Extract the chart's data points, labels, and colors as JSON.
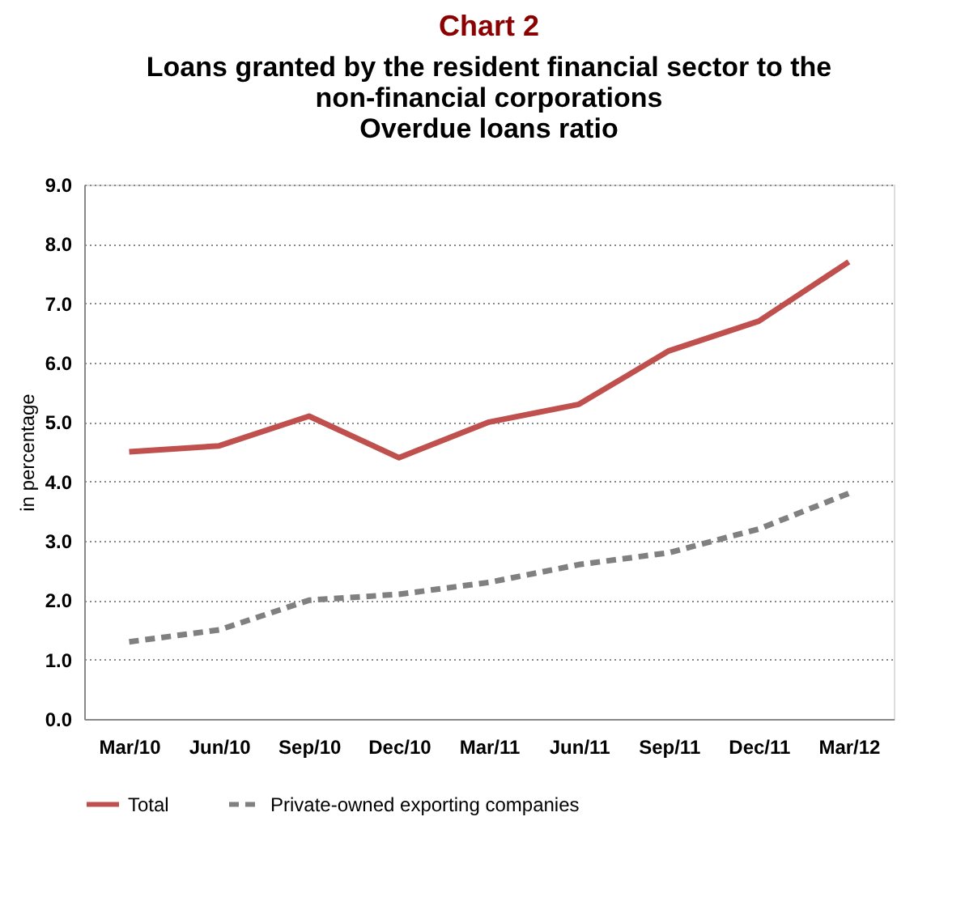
{
  "chart_data": {
    "type": "line",
    "title": "Chart 2",
    "subtitle": "Loans granted by the resident financial sector to the non-financial corporations",
    "annotations": [
      "Overdue loans ratio"
    ],
    "ylabel": "in percentage",
    "categories": [
      "Mar/10",
      "Jun/10",
      "Sep/10",
      "Dec/10",
      "Mar/11",
      "Jun/11",
      "Sep/11",
      "Dec/11",
      "Mar/12"
    ],
    "series": [
      {
        "name": "Total",
        "color": "#c0504d",
        "line_style": "solid",
        "values": [
          4.5,
          4.6,
          5.1,
          4.4,
          5.0,
          5.3,
          6.2,
          6.7,
          7.7
        ]
      },
      {
        "name": "Private-owned exporting companies",
        "color": "#808080",
        "line_style": "dashed",
        "values": [
          1.3,
          1.5,
          2.0,
          2.1,
          2.3,
          2.6,
          2.8,
          3.2,
          3.8
        ]
      }
    ],
    "ylim": [
      0,
      9
    ],
    "yticks": [
      {
        "value": 0,
        "label": "0.0"
      },
      {
        "value": 1,
        "label": "1.0"
      },
      {
        "value": 2,
        "label": "2.0"
      },
      {
        "value": 3,
        "label": "3.0"
      },
      {
        "value": 4,
        "label": "4.0"
      },
      {
        "value": 5,
        "label": "5.0"
      },
      {
        "value": 6,
        "label": "6.0"
      },
      {
        "value": 7,
        "label": "7.0"
      },
      {
        "value": 8,
        "label": "8.0"
      },
      {
        "value": 9,
        "label": "9.0"
      }
    ],
    "grid": "y",
    "legend": "bottom",
    "marker": "none"
  }
}
